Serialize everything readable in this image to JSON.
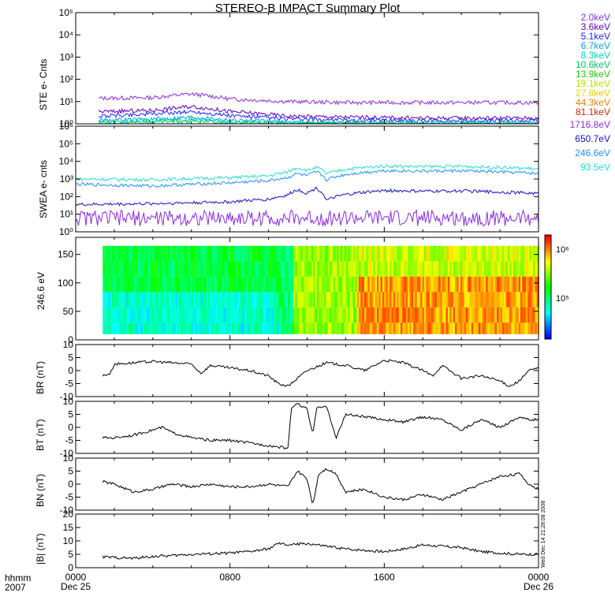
{
  "title": "STEREO-B IMPACT Summary Plot",
  "stamp": "Wed Dec 14 21:28:08 2008",
  "footer": {
    "time_label": "hhmm",
    "year": "2007"
  },
  "x_ticks": [
    {
      "hour": 0,
      "time": "0000",
      "date": "Dec 25"
    },
    {
      "hour": 8,
      "time": "0800",
      "date": ""
    },
    {
      "hour": 16,
      "time": "1600",
      "date": ""
    },
    {
      "hour": 24,
      "time": "0000",
      "date": "Dec 26"
    }
  ],
  "colors": {
    "2.0keV": "#8a2be2",
    "3.6keV": "#5a00c8",
    "5.1keV": "#1e24ff",
    "6.7keV": "#00a8e8",
    "8.3keV": "#00d8c0",
    "10.6keV": "#00c860",
    "13.9keV": "#20c800",
    "19.1keV": "#b8e000",
    "27.8keV": "#f0d000",
    "44.3keV": "#f08000",
    "81.1keV": "#e02000",
    "1716.8eV": "#8a2be2",
    "650.7eV": "#1010c8",
    "246.6eV": "#1e90ff",
    "93.5eV": "#20e0d0"
  },
  "chart_data": [
    {
      "type": "line",
      "name": "ste",
      "ylabel": "STE e- Cnts",
      "yscale": "log",
      "ylim": [
        1,
        100000
      ],
      "yticks": [
        1,
        10,
        100,
        1000,
        10000,
        100000
      ],
      "ytick_labels": [
        "10⁰",
        "10¹",
        "10²",
        "10³",
        "10⁴",
        "10⁵"
      ],
      "xlim": [
        0,
        24
      ],
      "legend": [
        "2.0keV",
        "3.6keV",
        "5.1keV",
        "6.7keV",
        "8.3keV",
        "10.6keV",
        "13.9keV",
        "19.1keV",
        "27.8keV",
        "44.3keV",
        "81.1keV"
      ],
      "series": [
        {
          "name": "2.0keV",
          "x": [
            1.2,
            4,
            6,
            8,
            11,
            14,
            18,
            22,
            24
          ],
          "values": [
            14,
            15,
            22,
            13,
            10,
            9,
            9,
            9,
            9
          ]
        },
        {
          "name": "3.6keV",
          "x": [
            1.2,
            4,
            6,
            8,
            11,
            14,
            18,
            22,
            24
          ],
          "values": [
            3.5,
            4,
            6,
            3.5,
            2.2,
            2,
            1.8,
            1.8,
            1.8
          ]
        },
        {
          "name": "5.1keV",
          "x": [
            1.2,
            4,
            6,
            8,
            11,
            14,
            18,
            22,
            24
          ],
          "values": [
            2.2,
            2.8,
            3.5,
            2.3,
            1.6,
            1.5,
            1.4,
            1.4,
            1.4
          ]
        },
        {
          "name": "6.7keV",
          "x": [
            1.2,
            4,
            6,
            8,
            11,
            14,
            18,
            22,
            24
          ],
          "values": [
            1.5,
            1.6,
            2,
            1.5,
            1.2,
            1.1,
            1.1,
            1.1,
            1.1
          ]
        },
        {
          "name": "8.3keV",
          "x": [
            1.2,
            4,
            6,
            8,
            11,
            14,
            18,
            22,
            24
          ],
          "values": [
            1.3,
            1.4,
            1.6,
            1.3,
            1.1,
            1.05,
            1.05,
            1.05,
            1.05
          ]
        },
        {
          "name": "10.6keV",
          "x": [
            1.2,
            4,
            6,
            8,
            11,
            14,
            18,
            22,
            24
          ],
          "values": [
            1.1,
            1.2,
            1.3,
            1.1,
            1,
            1,
            1,
            1,
            1
          ]
        }
      ]
    },
    {
      "type": "line",
      "name": "swea",
      "ylabel": "SWEA e- cnts",
      "yscale": "log",
      "ylim": [
        1,
        1000000
      ],
      "yticks": [
        1,
        10,
        100,
        1000,
        10000,
        100000,
        1000000
      ],
      "ytick_labels": [
        "10⁰",
        "10¹",
        "10²",
        "10³",
        "10⁴",
        "10⁵",
        "10⁶"
      ],
      "xlim": [
        0,
        24
      ],
      "legend": [
        "1716.8eV",
        "650.7eV",
        "246.6eV",
        "93.5eV"
      ],
      "series": [
        {
          "name": "93.5eV",
          "x": [
            0,
            4,
            8,
            10,
            11,
            11.5,
            12,
            12.5,
            13,
            14,
            16,
            18,
            20,
            22,
            23.5,
            24
          ],
          "values": [
            1000,
            900,
            1200,
            1500,
            2500,
            4500,
            3000,
            4500,
            2000,
            3500,
            5500,
            5000,
            5200,
            4500,
            4000,
            3500
          ]
        },
        {
          "name": "246.6eV",
          "x": [
            0,
            4,
            8,
            10,
            11,
            11.5,
            12,
            12.5,
            13,
            14,
            16,
            18,
            20,
            22,
            23.5,
            24
          ],
          "values": [
            500,
            400,
            600,
            800,
            1200,
            2000,
            1500,
            2500,
            900,
            1800,
            3000,
            2800,
            2900,
            2500,
            2200,
            2000
          ]
        },
        {
          "name": "650.7eV",
          "x": [
            0,
            4,
            8,
            10,
            11,
            11.5,
            12,
            12.5,
            13,
            14,
            16,
            18,
            20,
            22,
            23.5,
            24
          ],
          "values": [
            35,
            40,
            50,
            70,
            120,
            250,
            150,
            300,
            60,
            130,
            220,
            200,
            210,
            180,
            160,
            150
          ]
        },
        {
          "name": "1716.8eV",
          "x": [
            0,
            4,
            8,
            10,
            11,
            12,
            14,
            16,
            18,
            20,
            22,
            24
          ],
          "values": [
            6,
            6,
            6,
            6,
            6,
            6,
            6,
            6,
            6,
            6,
            6,
            6
          ]
        }
      ]
    },
    {
      "type": "heatmap",
      "name": "pad",
      "ylabel": "246.6 eV",
      "ylim": [
        0,
        180
      ],
      "yticks": [
        0,
        50,
        100,
        150
      ],
      "xlim": [
        0,
        24
      ],
      "colorbar": {
        "ticks": [
          "10⁵",
          "10⁶"
        ]
      }
    },
    {
      "type": "line",
      "name": "br",
      "ylabel": "BR (nT)",
      "ylim": [
        -10,
        10
      ],
      "yticks": [
        -10,
        -5,
        0,
        5,
        10
      ],
      "xlim": [
        0,
        24
      ],
      "series": [
        {
          "name": "BR",
          "x": [
            1.4,
            1.8,
            2,
            3,
            4,
            5,
            6,
            6.5,
            7,
            8,
            9,
            10,
            10.5,
            11,
            11.5,
            12,
            13,
            14,
            15,
            16,
            17,
            18,
            18.5,
            19,
            20,
            21,
            22,
            22.5,
            23,
            23.5,
            24
          ],
          "values": [
            -2,
            -1,
            2.5,
            3,
            3.5,
            3,
            2.5,
            -1,
            2,
            1,
            0,
            -2,
            -5,
            -6,
            -3,
            0,
            3,
            2,
            0,
            4,
            3,
            0,
            -2,
            2,
            -3,
            -2,
            -4,
            -6,
            -4,
            0,
            1
          ]
        }
      ]
    },
    {
      "type": "line",
      "name": "bt",
      "ylabel": "BT (nT)",
      "ylim": [
        -10,
        10
      ],
      "yticks": [
        -10,
        -5,
        0,
        5,
        10
      ],
      "xlim": [
        0,
        24
      ],
      "series": [
        {
          "name": "BT",
          "x": [
            1.4,
            2,
            3,
            4,
            4.5,
            5,
            5.5,
            6,
            7,
            8,
            9,
            10,
            10.5,
            11,
            11.2,
            11.5,
            12,
            12.3,
            12.5,
            13,
            13.5,
            14,
            15,
            16,
            17,
            18,
            19,
            20,
            21,
            22,
            23,
            23.5,
            24
          ],
          "values": [
            -4,
            -4,
            -3,
            -1,
            0,
            -2,
            -3,
            -4,
            -5,
            -5,
            -6,
            -7,
            -7.5,
            -8,
            8,
            9,
            7,
            -3,
            8,
            8,
            -4,
            5,
            4,
            3,
            2,
            4,
            3,
            -1,
            3,
            0,
            4,
            3,
            3
          ]
        }
      ]
    },
    {
      "type": "line",
      "name": "bn",
      "ylabel": "BN (nT)",
      "ylim": [
        -10,
        10
      ],
      "yticks": [
        -10,
        -5,
        0,
        5,
        10
      ],
      "xlim": [
        0,
        24
      ],
      "series": [
        {
          "name": "BN",
          "x": [
            1.4,
            2,
            3,
            4,
            5,
            6,
            7,
            8,
            9,
            10,
            11,
            11.5,
            12,
            12.3,
            12.6,
            13,
            13.5,
            14,
            15,
            16,
            17,
            18,
            19,
            20,
            21,
            22,
            23,
            23.5,
            24
          ],
          "values": [
            1,
            0,
            -3,
            -2,
            0,
            -1,
            0,
            -1,
            -1,
            0,
            -1,
            5,
            2,
            -8,
            4,
            6,
            4,
            -3,
            -2,
            -5,
            -6,
            -4,
            -6,
            -3,
            0,
            3,
            4,
            0,
            -2
          ]
        }
      ]
    },
    {
      "type": "line",
      "name": "bmag",
      "ylabel": "|B| (nT)",
      "ylim": [
        0,
        20
      ],
      "yticks": [
        0,
        5,
        10,
        15,
        20
      ],
      "xlim": [
        0,
        24
      ],
      "series": [
        {
          "name": "|B|",
          "x": [
            1.4,
            2,
            3,
            4,
            5,
            6,
            7,
            8,
            9,
            10,
            10.5,
            11,
            12,
            13,
            14,
            15,
            16,
            17,
            18,
            19,
            20,
            21,
            22,
            23,
            24
          ],
          "values": [
            4,
            3.8,
            3.5,
            4.2,
            4.5,
            5,
            5.2,
            5.5,
            6,
            7,
            9,
            8.5,
            9,
            8,
            7,
            6.5,
            6,
            7,
            8.5,
            8,
            7.5,
            6,
            5.5,
            5,
            5
          ]
        }
      ]
    }
  ]
}
